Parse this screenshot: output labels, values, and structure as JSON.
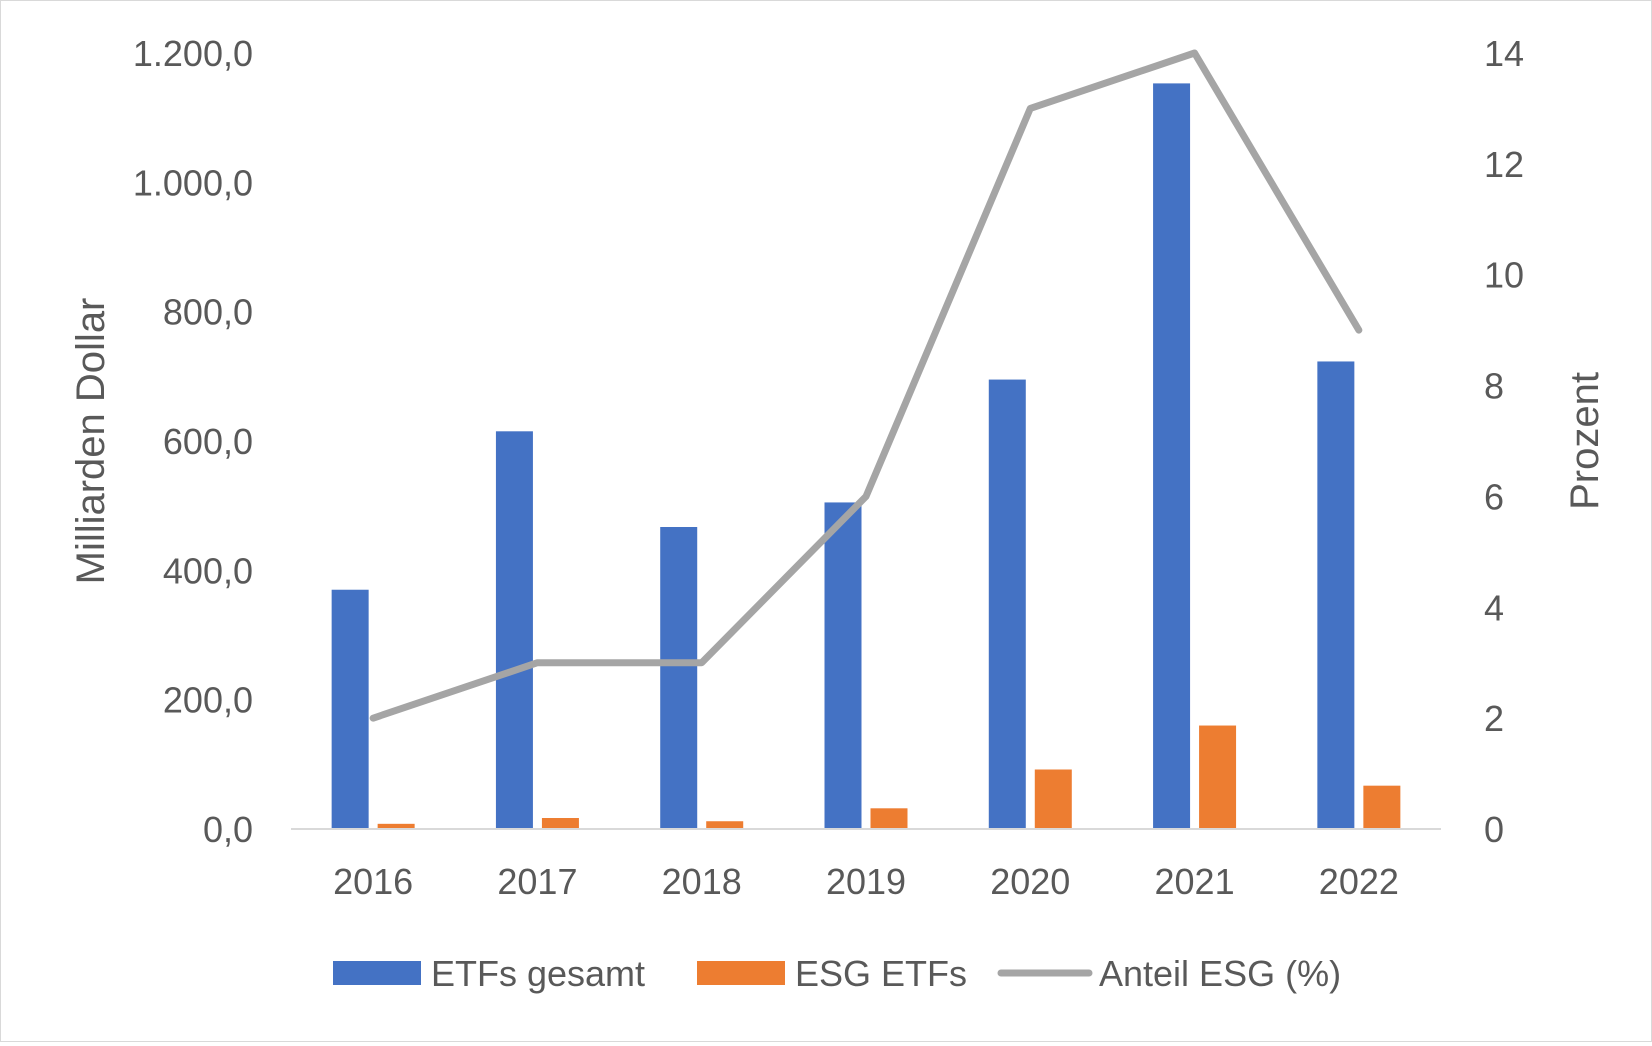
{
  "chart_data": {
    "type": "bar+line",
    "categories": [
      "2016",
      "2017",
      "2018",
      "2019",
      "2020",
      "2021",
      "2022"
    ],
    "series": [
      {
        "name": "ETFs gesamt",
        "type": "bar",
        "axis": "left",
        "color": "#4472C4",
        "values": [
          370,
          615,
          467,
          505,
          695,
          1153,
          723
        ]
      },
      {
        "name": "ESG ETFs",
        "type": "bar",
        "axis": "left",
        "color": "#ED7D31",
        "values": [
          8,
          17,
          12,
          32,
          92,
          160,
          67
        ]
      },
      {
        "name": "Anteil ESG (%)",
        "type": "line",
        "axis": "right",
        "color": "#A5A5A5",
        "values": [
          2,
          3,
          3,
          6,
          13,
          14,
          9
        ]
      }
    ],
    "y_left": {
      "label": "Milliarden Dollar",
      "min": 0,
      "max": 1200,
      "ticks": [
        "0,0",
        "200,0",
        "400,0",
        "600,0",
        "800,0",
        "1.000,0",
        "1.200,0"
      ]
    },
    "y_right": {
      "label": "Prozent",
      "min": 0,
      "max": 14,
      "ticks": [
        "0",
        "2",
        "4",
        "6",
        "8",
        "10",
        "12",
        "14"
      ]
    },
    "grid": false,
    "legend_position": "bottom"
  }
}
